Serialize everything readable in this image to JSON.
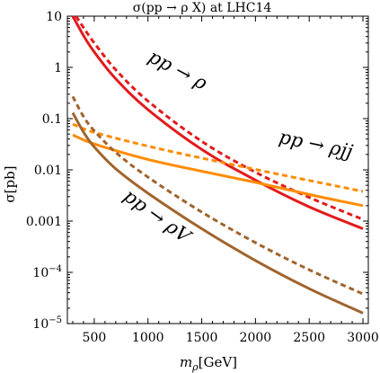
{
  "chart_data": {
    "type": "line",
    "title": "σ(pp → ρ X) at LHC14",
    "xlabel": "m_ρ[GeV]",
    "ylabel": "σ[pb]",
    "xlim": [
      250,
      3050
    ],
    "ylim": [
      1e-05,
      10
    ],
    "y_scale": "log",
    "x_ticks": [
      500,
      1000,
      1500,
      2000,
      2500,
      3000
    ],
    "y_ticks": [
      {
        "value": 10,
        "label": "10"
      },
      {
        "value": 1,
        "label": "1"
      },
      {
        "value": 0.1,
        "label": "0.1"
      },
      {
        "value": 0.01,
        "label": "0.01"
      },
      {
        "value": 0.001,
        "label": "0.001"
      },
      {
        "value": 0.0001,
        "base": "10",
        "exp": "−4"
      },
      {
        "value": 1e-05,
        "base": "10",
        "exp": "−5"
      }
    ],
    "grid": false,
    "series": [
      {
        "color": "#e31a1c",
        "dash": false,
        "x": [
          300,
          400,
          500,
          700,
          1000,
          1500,
          2000,
          2500,
          3000
        ],
        "y": [
          10,
          4.2,
          2.0,
          0.6,
          0.15,
          0.025,
          0.0063,
          0.0019,
          0.00071
        ]
      },
      {
        "color": "#e31a1c",
        "dash": true,
        "x": [
          330,
          400,
          500,
          700,
          1000,
          1500,
          2000,
          2500,
          3000
        ],
        "y": [
          10,
          6.0,
          3.0,
          0.9,
          0.22,
          0.036,
          0.009,
          0.0029,
          0.00108
        ]
      },
      {
        "color": "#ff8c00",
        "dash": false,
        "x": [
          300,
          500,
          1000,
          1500,
          2000,
          2500,
          3000
        ],
        "y": [
          0.048,
          0.032,
          0.016,
          0.0094,
          0.0057,
          0.0033,
          0.002
        ]
      },
      {
        "color": "#ff8c00",
        "dash": true,
        "x": [
          300,
          500,
          1000,
          1500,
          2000,
          2500,
          3000
        ],
        "y": [
          0.078,
          0.054,
          0.029,
          0.017,
          0.0102,
          0.0062,
          0.0038
        ]
      },
      {
        "color": "#a0642d",
        "dash": false,
        "x": [
          300,
          400,
          500,
          700,
          1000,
          1500,
          2000,
          2500,
          3000
        ],
        "y": [
          0.13,
          0.055,
          0.028,
          0.0105,
          0.0035,
          0.00071,
          0.00017,
          4.8e-05,
          1.6e-05
        ]
      },
      {
        "color": "#a0642d",
        "dash": true,
        "x": [
          300,
          400,
          500,
          700,
          1000,
          1500,
          2000,
          2500,
          3000
        ],
        "y": [
          0.27,
          0.11,
          0.058,
          0.022,
          0.0072,
          0.0015,
          0.00038,
          0.000112,
          3.8e-05
        ]
      }
    ],
    "annotations": [
      {
        "text": "pp → ρ",
        "x": 1250,
        "y": 0.7,
        "angle": 28
      },
      {
        "text": "pp → ρjj",
        "x": 2550,
        "y": 0.024,
        "angle": 12
      },
      {
        "text": "pp → ρV",
        "x": 1050,
        "y": 0.001,
        "angle": 36
      }
    ]
  }
}
